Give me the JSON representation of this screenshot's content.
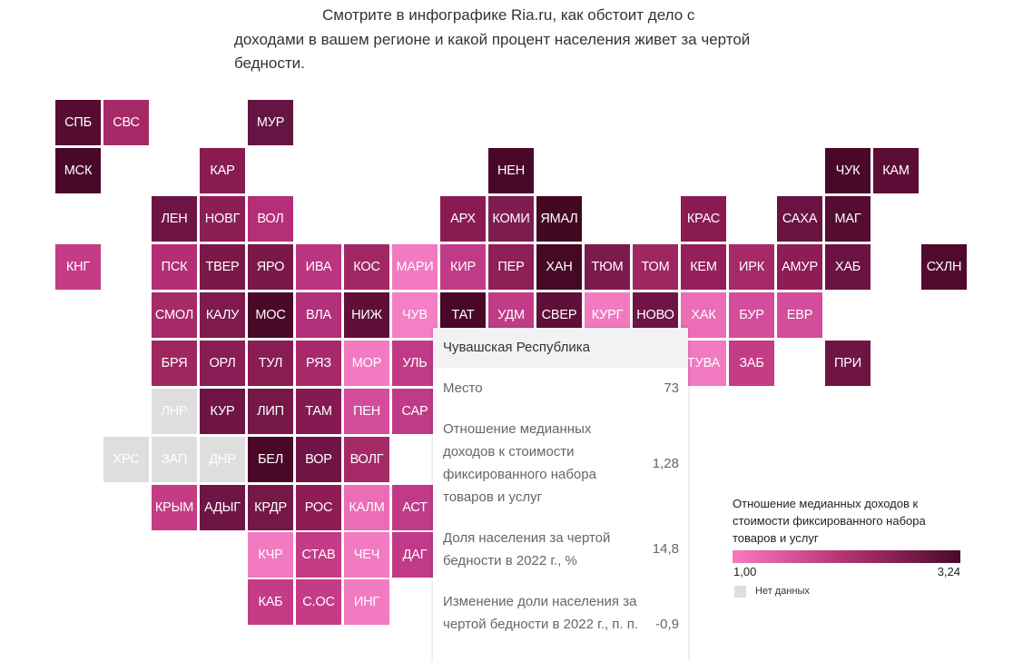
{
  "intro": {
    "line1": "Смотрите в инфографике Ria.ru, как обстоит дело с",
    "line2": "доходами в вашем регионе и какой процент населения живет за чертой",
    "line3": "бедности."
  },
  "colors": {
    "scale_low": "#f879c1",
    "scale_mid": "#b0336f",
    "scale_high": "#4a0a2a",
    "no_data": "#dedede"
  },
  "map": {
    "regions": [
      {
        "code": "СПБ",
        "col": 0,
        "row": 0,
        "color": "#570c31"
      },
      {
        "code": "СВС",
        "col": 1,
        "row": 0,
        "color": "#a52a67"
      },
      {
        "code": "МУР",
        "col": 4,
        "row": 0,
        "color": "#661444"
      },
      {
        "code": "МСК",
        "col": 0,
        "row": 1,
        "color": "#4a0828"
      },
      {
        "code": "КАР",
        "col": 3,
        "row": 1,
        "color": "#8a1b51"
      },
      {
        "code": "НЕН",
        "col": 9,
        "row": 1,
        "color": "#4a0828"
      },
      {
        "code": "ЧУК",
        "col": 16,
        "row": 1,
        "color": "#4a0828"
      },
      {
        "code": "КАМ",
        "col": 17,
        "row": 1,
        "color": "#5c0d36"
      },
      {
        "code": "ЛЕН",
        "col": 2,
        "row": 2,
        "color": "#6e1545"
      },
      {
        "code": "НОВГ",
        "col": 3,
        "row": 2,
        "color": "#8c1e56"
      },
      {
        "code": "ВОЛ",
        "col": 4,
        "row": 2,
        "color": "#b42f78"
      },
      {
        "code": "АРХ",
        "col": 8,
        "row": 2,
        "color": "#8a1b52"
      },
      {
        "code": "КОМИ",
        "col": 9,
        "row": 2,
        "color": "#7e1c4f"
      },
      {
        "code": "ЯМАЛ",
        "col": 10,
        "row": 2,
        "color": "#420721"
      },
      {
        "code": "КРАС",
        "col": 13,
        "row": 2,
        "color": "#8a1b52"
      },
      {
        "code": "САХА",
        "col": 15,
        "row": 2,
        "color": "#6a1343"
      },
      {
        "code": "МАГ",
        "col": 16,
        "row": 2,
        "color": "#540c30"
      },
      {
        "code": "КНГ",
        "col": 0,
        "row": 3,
        "color": "#c43b86"
      },
      {
        "code": "ПСК",
        "col": 2,
        "row": 3,
        "color": "#b42e76"
      },
      {
        "code": "ТВЕР",
        "col": 3,
        "row": 3,
        "color": "#7a1849"
      },
      {
        "code": "ЯРО",
        "col": 4,
        "row": 3,
        "color": "#7a1849"
      },
      {
        "code": "ИВА",
        "col": 5,
        "row": 3,
        "color": "#bb3480"
      },
      {
        "code": "КОС",
        "col": 6,
        "row": 3,
        "color": "#a12764"
      },
      {
        "code": "МАРИ",
        "col": 7,
        "row": 3,
        "color": "#f27ac0"
      },
      {
        "code": "КИР",
        "col": 8,
        "row": 3,
        "color": "#c13a89"
      },
      {
        "code": "ПЕР",
        "col": 9,
        "row": 3,
        "color": "#8e1f57"
      },
      {
        "code": "ХАН",
        "col": 10,
        "row": 3,
        "color": "#460824"
      },
      {
        "code": "ТЮМ",
        "col": 11,
        "row": 3,
        "color": "#7c1a4d"
      },
      {
        "code": "ТОМ",
        "col": 12,
        "row": 3,
        "color": "#9e2762"
      },
      {
        "code": "КЕМ",
        "col": 13,
        "row": 3,
        "color": "#951f5b"
      },
      {
        "code": "ИРК",
        "col": 14,
        "row": 3,
        "color": "#a52a67"
      },
      {
        "code": "АМУР",
        "col": 15,
        "row": 3,
        "color": "#8e1d56"
      },
      {
        "code": "ХАБ",
        "col": 16,
        "row": 3,
        "color": "#6a1343"
      },
      {
        "code": "СХЛН",
        "col": 18,
        "row": 3,
        "color": "#4f0a2c"
      },
      {
        "code": "СМОЛ",
        "col": 2,
        "row": 4,
        "color": "#a52a67"
      },
      {
        "code": "КАЛУ",
        "col": 3,
        "row": 4,
        "color": "#7e1a4d"
      },
      {
        "code": "МОС",
        "col": 4,
        "row": 4,
        "color": "#4a0828"
      },
      {
        "code": "ВЛА",
        "col": 5,
        "row": 4,
        "color": "#b3307a"
      },
      {
        "code": "НИЖ",
        "col": 6,
        "row": 4,
        "color": "#600f38"
      },
      {
        "code": "ЧУВ",
        "col": 7,
        "row": 4,
        "color": "#f47fc4"
      },
      {
        "code": "ТАТ",
        "col": 8,
        "row": 4,
        "color": "#4a0828"
      },
      {
        "code": "УДМ",
        "col": 9,
        "row": 4,
        "color": "#c23b86"
      },
      {
        "code": "СВЕР",
        "col": 10,
        "row": 4,
        "color": "#600f38"
      },
      {
        "code": "КУРГ",
        "col": 11,
        "row": 4,
        "color": "#f27ac0"
      },
      {
        "code": "НОВО",
        "col": 12,
        "row": 4,
        "color": "#6e1545"
      },
      {
        "code": "ХАК",
        "col": 13,
        "row": 4,
        "color": "#eb6db5"
      },
      {
        "code": "БУР",
        "col": 14,
        "row": 4,
        "color": "#d44c9c"
      },
      {
        "code": "ЕВР",
        "col": 15,
        "row": 4,
        "color": "#d44c9c"
      },
      {
        "code": "БРЯ",
        "col": 2,
        "row": 5,
        "color": "#9e2760"
      },
      {
        "code": "ОРЛ",
        "col": 3,
        "row": 5,
        "color": "#8a1d55"
      },
      {
        "code": "ТУЛ",
        "col": 4,
        "row": 5,
        "color": "#8a1c54"
      },
      {
        "code": "РЯЗ",
        "col": 5,
        "row": 5,
        "color": "#a7296a"
      },
      {
        "code": "МОР",
        "col": 6,
        "row": 5,
        "color": "#f27ac0"
      },
      {
        "code": "УЛЬ",
        "col": 7,
        "row": 5,
        "color": "#c13a89"
      },
      {
        "code": "ТУВА",
        "col": 13,
        "row": 5,
        "color": "#f27ac0"
      },
      {
        "code": "ЗАБ",
        "col": 14,
        "row": 5,
        "color": "#c43b86"
      },
      {
        "code": "ПРИ",
        "col": 16,
        "row": 5,
        "color": "#6e1545"
      },
      {
        "code": "ЛНР",
        "col": 2,
        "row": 6,
        "color": "#dedede",
        "nodata": true
      },
      {
        "code": "КУР",
        "col": 3,
        "row": 6,
        "color": "#6e1545"
      },
      {
        "code": "ЛИП",
        "col": 4,
        "row": 6,
        "color": "#751848"
      },
      {
        "code": "ТАМ",
        "col": 5,
        "row": 6,
        "color": "#841a51"
      },
      {
        "code": "ПЕН",
        "col": 6,
        "row": 6,
        "color": "#d44c9c"
      },
      {
        "code": "САР",
        "col": 7,
        "row": 6,
        "color": "#c13a89"
      },
      {
        "code": "ХРС",
        "col": 1,
        "row": 7,
        "color": "#dedede",
        "nodata": true
      },
      {
        "code": "ЗАП",
        "col": 2,
        "row": 7,
        "color": "#dedede",
        "nodata": true
      },
      {
        "code": "ДНР",
        "col": 3,
        "row": 7,
        "color": "#dedede",
        "nodata": true
      },
      {
        "code": "БЕЛ",
        "col": 4,
        "row": 7,
        "color": "#4a0828"
      },
      {
        "code": "ВОР",
        "col": 5,
        "row": 7,
        "color": "#6e1545"
      },
      {
        "code": "ВОЛГ",
        "col": 6,
        "row": 7,
        "color": "#a52a67"
      },
      {
        "code": "КРЫМ",
        "col": 2,
        "row": 8,
        "color": "#c43b86"
      },
      {
        "code": "АДЫГ",
        "col": 3,
        "row": 8,
        "color": "#6e1545"
      },
      {
        "code": "КРДР",
        "col": 4,
        "row": 8,
        "color": "#751848"
      },
      {
        "code": "РОС",
        "col": 5,
        "row": 8,
        "color": "#8e1d56"
      },
      {
        "code": "КАЛМ",
        "col": 6,
        "row": 8,
        "color": "#eb6db5"
      },
      {
        "code": "АСТ",
        "col": 7,
        "row": 8,
        "color": "#c13a89"
      },
      {
        "code": "КЧР",
        "col": 4,
        "row": 9,
        "color": "#f27ac0"
      },
      {
        "code": "СТАВ",
        "col": 5,
        "row": 9,
        "color": "#c43b86"
      },
      {
        "code": "ЧЕЧ",
        "col": 6,
        "row": 9,
        "color": "#f27ac0"
      },
      {
        "code": "ДАГ",
        "col": 7,
        "row": 9,
        "color": "#c13a89"
      },
      {
        "code": "КАБ",
        "col": 4,
        "row": 10,
        "color": "#c43b86"
      },
      {
        "code": "С.ОС",
        "col": 5,
        "row": 10,
        "color": "#c43b86"
      },
      {
        "code": "ИНГ",
        "col": 6,
        "row": 10,
        "color": "#f27ac0"
      }
    ]
  },
  "tooltip": {
    "region_name": "Чувашская Республика",
    "rows": [
      {
        "label": "Место",
        "value": "73"
      },
      {
        "label": "Отношение медианных доходов к стоимости фиксированного набора товаров и услуг",
        "value": "1,28"
      },
      {
        "label": "Доля населения за чертой бедности в 2022 г., %",
        "value": "14,8"
      },
      {
        "label": "Изменение доли населения за чертой бедности в 2022 г., п. п.",
        "value": "-0,9"
      }
    ]
  },
  "legend": {
    "title": "Отношение медианных доходов к стоимости фиксированного набора товаров и услуг",
    "min_label": "1,00",
    "max_label": "3,24",
    "no_data_label": "Нет данных"
  }
}
